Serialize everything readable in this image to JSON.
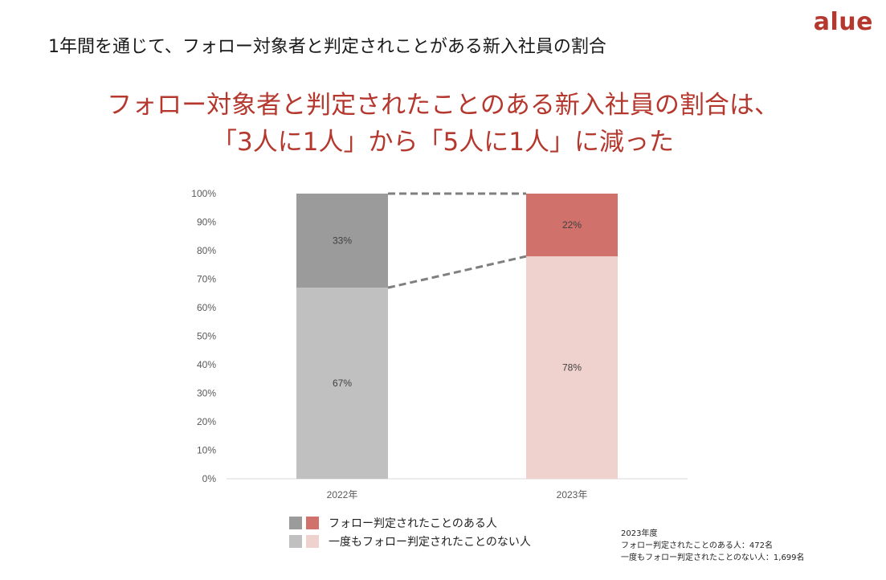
{
  "slide_title": "1年間を通じて、フォロー対象者と判定されことがある新入社員の割合",
  "logo": "alue",
  "headline": {
    "line1": "フォロー対象者と判定されたことのある新入社員の割合は、",
    "line2": "「3人に1人」から「5人に1人」に減った"
  },
  "colors": {
    "accent": "#b5382f",
    "follow_2022": "#9b9b9b",
    "never_2022": "#c0c0c0",
    "follow_2023": "#d0716b",
    "never_2023": "#efd1ce",
    "connector": "#7f7f7f"
  },
  "chart_data": {
    "type": "bar",
    "stacked": true,
    "categories": [
      "2022年",
      "2023年"
    ],
    "series": [
      {
        "name": "一度もフォロー判定されたことのない人",
        "values": [
          67,
          78
        ],
        "labels": [
          "67%",
          "78%"
        ]
      },
      {
        "name": "フォロー判定されたことのある人",
        "values": [
          33,
          22
        ],
        "labels": [
          "33%",
          "22%"
        ]
      }
    ],
    "yticks": [
      "0%",
      "10%",
      "20%",
      "30%",
      "40%",
      "50%",
      "60%",
      "70%",
      "80%",
      "90%",
      "100%"
    ],
    "ylim": [
      0,
      100
    ],
    "connector_lines": true
  },
  "legend": {
    "follow_label": "フォロー判定されたことのある人",
    "never_label": "一度もフォロー判定されたことのない人"
  },
  "footnote": {
    "year": "2023年度",
    "follow_line": "フォロー判定されたことのある人：472名",
    "never_line": "一度もフォロー判定されたことのない人：1,699名"
  }
}
